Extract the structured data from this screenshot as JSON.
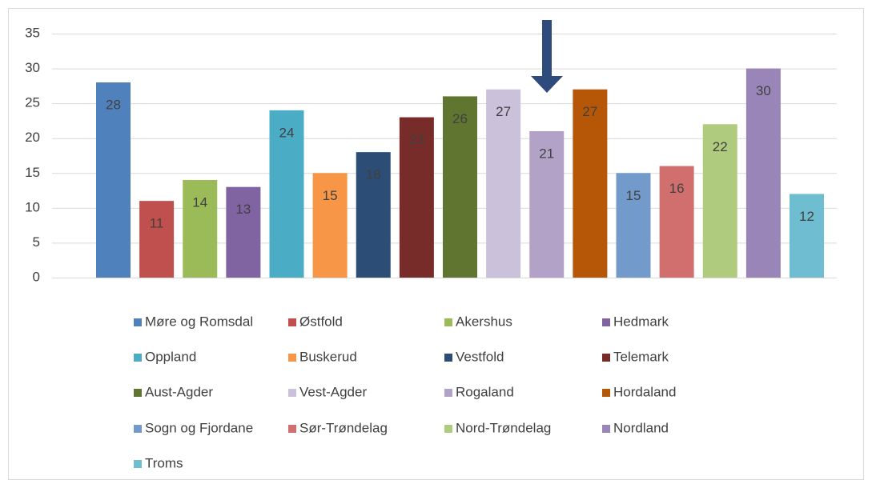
{
  "chart_data": {
    "type": "bar",
    "ylim": [
      0,
      35
    ],
    "yticks": [
      0,
      5,
      10,
      15,
      20,
      25,
      30,
      35
    ],
    "grid": true,
    "legend": "bottom",
    "series": [
      {
        "name": "Møre og Romsdal",
        "color": "#4f81bd",
        "values": [
          28
        ]
      },
      {
        "name": "Østfold",
        "color": "#c0504d",
        "values": [
          11
        ]
      },
      {
        "name": "Akershus",
        "color": "#9bbb59",
        "values": [
          14
        ]
      },
      {
        "name": "Hedmark",
        "color": "#8064a2",
        "values": [
          13
        ]
      },
      {
        "name": "Oppland",
        "color": "#4bacc6",
        "values": [
          24
        ]
      },
      {
        "name": "Buskerud",
        "color": "#f79646",
        "values": [
          15
        ]
      },
      {
        "name": "Vestfold",
        "color": "#2c4d75",
        "values": [
          18
        ]
      },
      {
        "name": "Telemark",
        "color": "#772c2a",
        "values": [
          23
        ]
      },
      {
        "name": "Aust-Agder",
        "color": "#5f7530",
        "values": [
          26
        ]
      },
      {
        "name": "Vest-Agder",
        "color": "#ccc1da",
        "values": [
          27
        ]
      },
      {
        "name": "Rogaland",
        "color": "#b3a2c7",
        "values": [
          21
        ]
      },
      {
        "name": "Hordaland",
        "color": "#b65708",
        "values": [
          27
        ]
      },
      {
        "name": "Sogn og Fjordane",
        "color": "#729aca",
        "values": [
          15
        ]
      },
      {
        "name": "Sør-Trøndelag",
        "color": "#d06f6d",
        "values": [
          16
        ]
      },
      {
        "name": "Nord-Trøndelag",
        "color": "#afcb7e",
        "values": [
          22
        ]
      },
      {
        "name": "Nordland",
        "color": "#9a85b9",
        "values": [
          30
        ]
      },
      {
        "name": "Troms",
        "color": "#6fbdd1",
        "values": [
          12
        ]
      }
    ]
  }
}
